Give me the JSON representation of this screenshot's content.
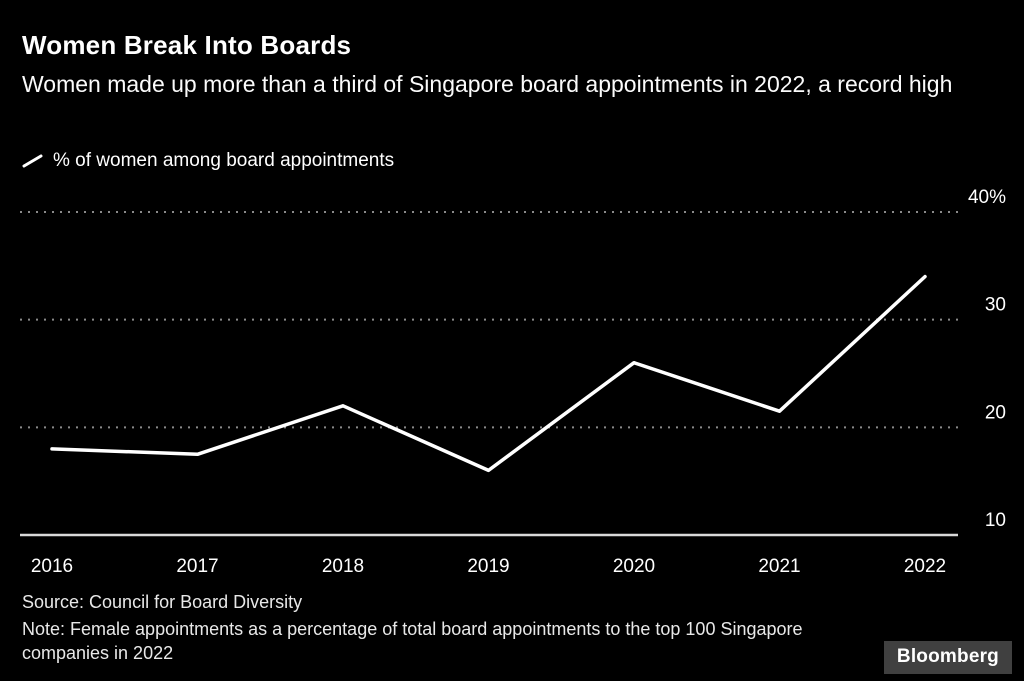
{
  "header": {
    "title": "Women Break Into Boards",
    "subtitle": "Women made up more than a third of Singapore board appointments in 2022, a record high"
  },
  "legend": {
    "icon": "line-series-icon",
    "label": "% of women among board appointments"
  },
  "colors": {
    "background": "#000000",
    "line": "#ffffff",
    "grid": "#8a8a8a",
    "axis": "#d9d9d9",
    "text": "#ffffff"
  },
  "chart_data": {
    "type": "line",
    "title": "Women Break Into Boards",
    "subtitle": "Women made up more than a third of Singapore board appointments in 2022, a record high",
    "series_label": "% of women among board appointments",
    "categories": [
      "2016",
      "2017",
      "2018",
      "2019",
      "2020",
      "2021",
      "2022"
    ],
    "values": [
      18,
      17.5,
      22,
      16,
      26,
      21.5,
      34
    ],
    "ylim": [
      10,
      40
    ],
    "yticks": [
      {
        "value": 40,
        "label": "40%"
      },
      {
        "value": 30,
        "label": "30"
      },
      {
        "value": 20,
        "label": "20"
      },
      {
        "value": 10,
        "label": "10"
      }
    ],
    "grid": "horizontal dotted",
    "legend_position": "top-left",
    "line_color": "#ffffff"
  },
  "footer": {
    "source": "Source: Council for Board Diversity",
    "note": "Note: Female appointments as a percentage of total board appointments to the top 100 Singapore companies in 2022",
    "brand": "Bloomberg"
  }
}
